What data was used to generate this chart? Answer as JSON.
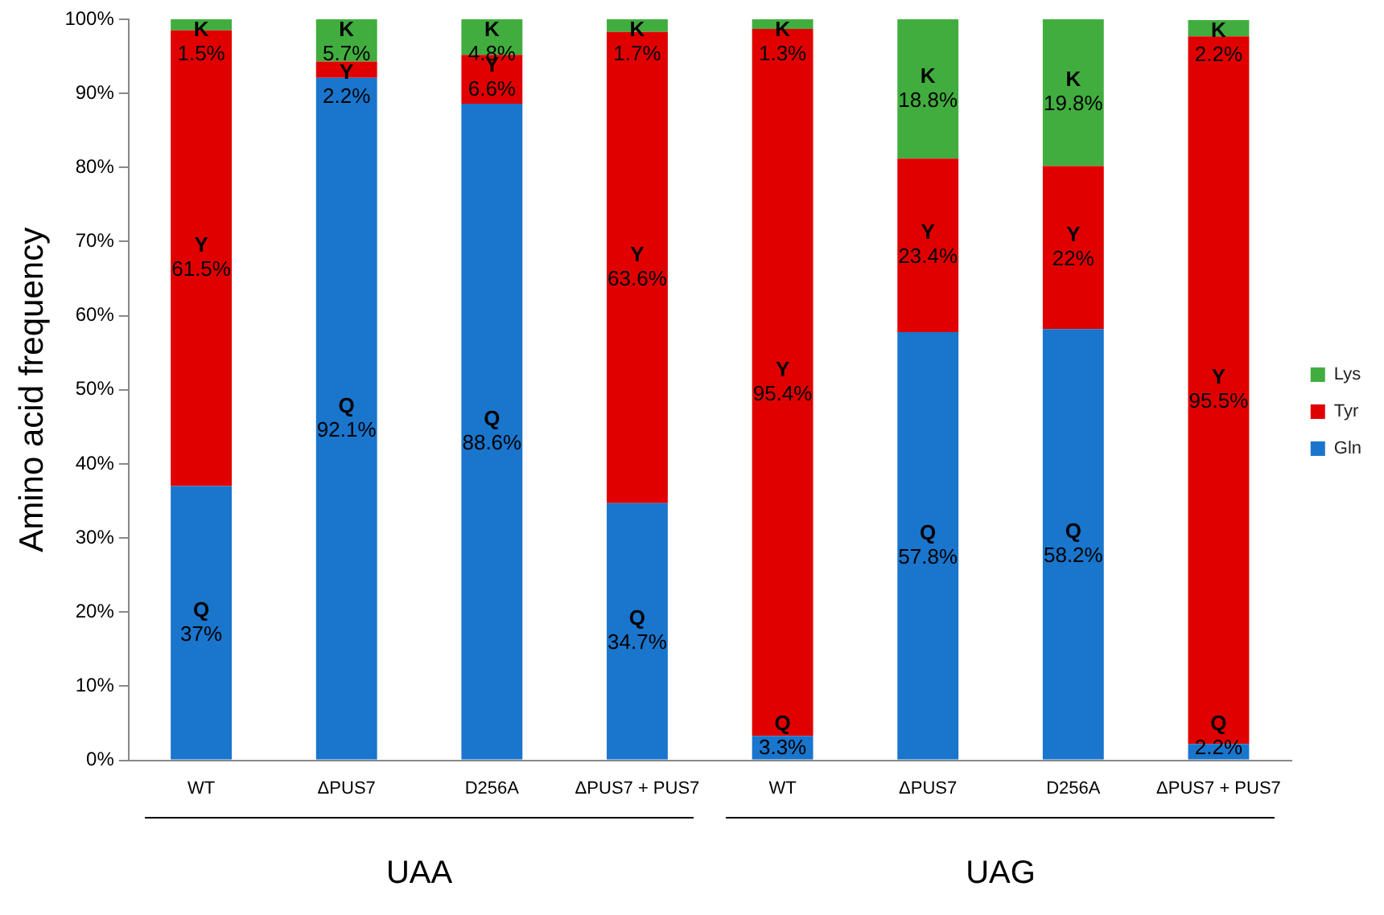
{
  "chart_data": {
    "type": "bar",
    "stacked": true,
    "ylabel": "Amino acid frequency",
    "categories": [
      "WT",
      "ΔPUS7",
      "D256A",
      "ΔPUS7 + PUS7",
      "WT",
      "ΔPUS7",
      "D256A",
      "ΔPUS7 + PUS7"
    ],
    "series": [
      {
        "name": "Gln",
        "color": "#1a75cc",
        "values": [
          37,
          92.1,
          88.6,
          34.7,
          3.3,
          57.8,
          58.2,
          2.2
        ],
        "value_labels": [
          "Q\n37%",
          "Q\n92.1%",
          "Q\n88.6%",
          "Q\n34.7%",
          "Q\n3.3%",
          "Q\n57.8%",
          "Q\n58.2%",
          "Q\n2.2%"
        ]
      },
      {
        "name": "Tyr",
        "color": "#e00000",
        "values": [
          61.5,
          2.2,
          6.6,
          63.6,
          95.4,
          23.4,
          22,
          95.5
        ],
        "value_labels": [
          "Y\n61.5%",
          "Y\n2.2%",
          "Y\n6.6%",
          "Y\n63.6%",
          "Y\n95.4%",
          "Y\n23.4%",
          "Y\n22%",
          "Y\n95.5%"
        ]
      },
      {
        "name": "Lys",
        "color": "#41ad3f",
        "values": [
          1.5,
          5.7,
          4.8,
          1.7,
          1.3,
          18.8,
          19.8,
          2.2
        ],
        "value_labels": [
          "K\n1.5%",
          "K\n5.7%",
          "K\n4.8%",
          "K\n1.7%",
          "K\n1.3%",
          "K\n18.8%",
          "K\n19.8%",
          "K\n2.2%"
        ]
      }
    ],
    "ylim": [
      0,
      100
    ],
    "yticks": [
      {
        "value": 0,
        "label": "0%"
      },
      {
        "value": 10,
        "label": "10%"
      },
      {
        "value": 20,
        "label": "20%"
      },
      {
        "value": 30,
        "label": "30%"
      },
      {
        "value": 40,
        "label": "40%"
      },
      {
        "value": 50,
        "label": "50%"
      },
      {
        "value": 60,
        "label": "60%"
      },
      {
        "value": 70,
        "label": "70%"
      },
      {
        "value": 80,
        "label": "80%"
      },
      {
        "value": 90,
        "label": "90%"
      },
      {
        "value": 100,
        "label": "100%"
      }
    ],
    "grid": false,
    "legend": "right",
    "annotations": [
      "UAA",
      "UAG"
    ]
  }
}
